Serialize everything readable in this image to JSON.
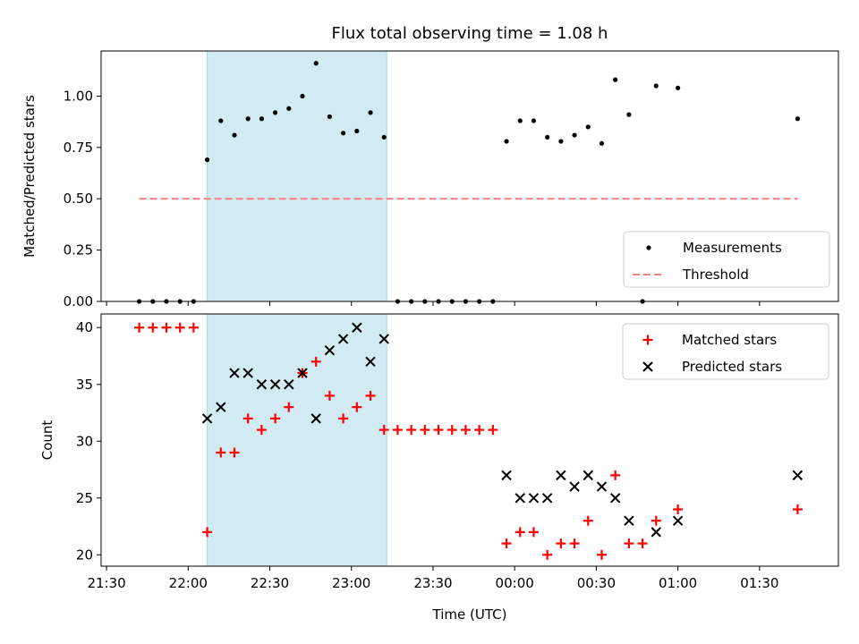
{
  "title": "Flux total observing time = 1.08 h",
  "colors": {
    "span": "#add8e6",
    "threshold": "#f08080",
    "measurements": "#000000",
    "matched": "#ff0000",
    "predicted": "#000000"
  },
  "chart_data": [
    {
      "type": "scatter",
      "panel": "top",
      "title": "Flux total observing time = 1.08 h",
      "ylabel": "Matched/Predicted stars",
      "xlabel": "",
      "ylim": [
        0,
        1.22
      ],
      "yticks": [
        0.0,
        0.25,
        0.5,
        0.75,
        1.0
      ],
      "ytick_labels": [
        "0.00",
        "0.25",
        "0.50",
        "0.75",
        "1.00"
      ],
      "xlim": [
        "21:28",
        "01:59"
      ],
      "legend_position": "lower right",
      "highlight_span": [
        "22:07",
        "23:13"
      ],
      "series": [
        {
          "name": "Measurements",
          "kind": "scatter",
          "marker": "dot",
          "x": [
            "21:42",
            "21:47",
            "21:52",
            "21:57",
            "22:02",
            "22:07",
            "22:12",
            "22:17",
            "22:22",
            "22:27",
            "22:32",
            "22:37",
            "22:42",
            "22:47",
            "22:52",
            "22:57",
            "23:02",
            "23:07",
            "23:12",
            "23:17",
            "23:22",
            "23:27",
            "23:32",
            "23:37",
            "23:42",
            "23:47",
            "23:52",
            "23:57",
            "00:02",
            "00:07",
            "00:12",
            "00:17",
            "00:22",
            "00:27",
            "00:32",
            "00:37",
            "00:42",
            "00:47",
            "00:52",
            "01:00",
            "01:44"
          ],
          "y": [
            0,
            0,
            0,
            0,
            0,
            0.69,
            0.88,
            0.81,
            0.89,
            0.89,
            0.92,
            0.94,
            1.0,
            1.16,
            0.9,
            0.82,
            0.83,
            0.92,
            0.8,
            0,
            0,
            0,
            0,
            0,
            0,
            0,
            0,
            0.78,
            0.88,
            0.88,
            0.8,
            0.78,
            0.81,
            0.85,
            0.77,
            1.08,
            0.91,
            0,
            1.05,
            1.04,
            0.89
          ]
        },
        {
          "name": "Threshold",
          "kind": "line",
          "style": "dashed",
          "x": [
            "21:42",
            "01:44"
          ],
          "y": [
            0.5,
            0.5
          ]
        }
      ]
    },
    {
      "type": "scatter",
      "panel": "bottom",
      "title": "",
      "ylabel": "Count",
      "xlabel": "Time (UTC)",
      "ylim": [
        19,
        41.2
      ],
      "yticks": [
        20,
        25,
        30,
        35,
        40
      ],
      "ytick_labels": [
        "20",
        "25",
        "30",
        "35",
        "40"
      ],
      "xlim": [
        "21:28",
        "01:59"
      ],
      "xticks": [
        "21:30",
        "22:00",
        "22:30",
        "23:00",
        "23:30",
        "00:00",
        "00:30",
        "01:00",
        "01:30"
      ],
      "xtick_labels": [
        "21:30",
        "22:00",
        "22:30",
        "23:00",
        "23:30",
        "00:00",
        "00:30",
        "01:00",
        "01:30"
      ],
      "legend_position": "upper right",
      "highlight_span": [
        "22:07",
        "23:13"
      ],
      "series": [
        {
          "name": "Matched stars",
          "marker": "plus",
          "x": [
            "21:42",
            "21:47",
            "21:52",
            "21:57",
            "22:02",
            "22:07",
            "22:12",
            "22:17",
            "22:22",
            "22:27",
            "22:32",
            "22:37",
            "22:42",
            "22:47",
            "22:52",
            "22:57",
            "23:02",
            "23:07",
            "23:12",
            "23:17",
            "23:22",
            "23:27",
            "23:32",
            "23:37",
            "23:42",
            "23:47",
            "23:52",
            "23:57",
            "00:02",
            "00:07",
            "00:12",
            "00:17",
            "00:22",
            "00:27",
            "00:32",
            "00:37",
            "00:42",
            "00:47",
            "00:52",
            "01:00",
            "01:44"
          ],
          "y": [
            40,
            40,
            40,
            40,
            40,
            22,
            29,
            29,
            32,
            31,
            32,
            33,
            36,
            37,
            34,
            32,
            33,
            34,
            31,
            31,
            31,
            31,
            31,
            31,
            31,
            31,
            31,
            21,
            22,
            22,
            20,
            21,
            21,
            23,
            20,
            27,
            21,
            21,
            23,
            24,
            24
          ]
        },
        {
          "name": "Predicted stars",
          "marker": "x",
          "x": [
            "22:07",
            "22:12",
            "22:17",
            "22:22",
            "22:27",
            "22:32",
            "22:37",
            "22:42",
            "22:47",
            "22:52",
            "22:57",
            "23:02",
            "23:07",
            "23:12",
            "23:57",
            "00:02",
            "00:07",
            "00:12",
            "00:17",
            "00:22",
            "00:27",
            "00:32",
            "00:37",
            "00:42",
            "00:52",
            "01:00",
            "01:44"
          ],
          "y": [
            32,
            33,
            36,
            36,
            35,
            35,
            35,
            36,
            32,
            38,
            39,
            40,
            37,
            39,
            27,
            25,
            25,
            25,
            27,
            26,
            27,
            26,
            25,
            23,
            22,
            23,
            27
          ]
        }
      ]
    }
  ]
}
